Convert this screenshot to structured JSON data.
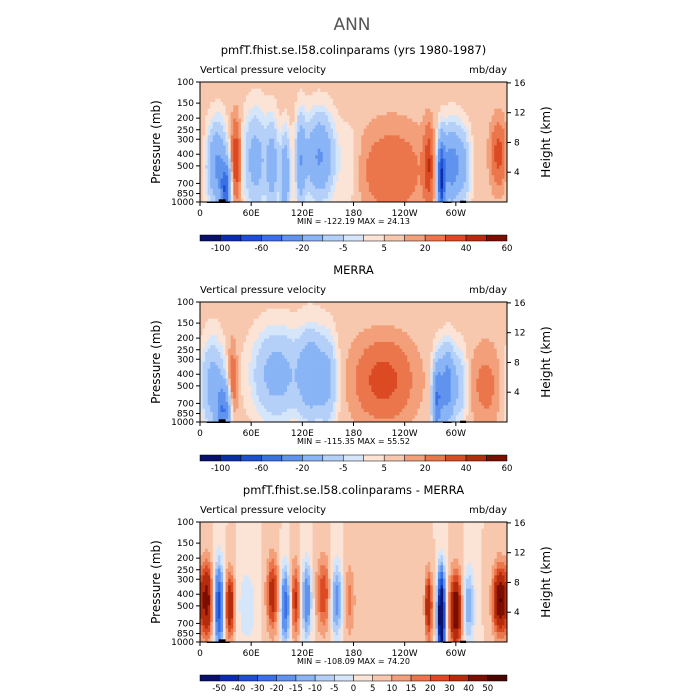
{
  "page": {
    "title": "ANN"
  },
  "colors": {
    "model_scale": [
      "#08106b",
      "#0a2dac",
      "#1c4fd4",
      "#3a70e6",
      "#5f93ee",
      "#89b4f5",
      "#b4d0f8",
      "#d6e6fa",
      "#fbe3d6",
      "#f8c8ae",
      "#f3a07a",
      "#ec764c",
      "#db4a22",
      "#b52c0c",
      "#7a0f00"
    ],
    "diff_scale": [
      "#08106b",
      "#0a2dac",
      "#1c4fd4",
      "#3a70e6",
      "#5f93ee",
      "#89b4f5",
      "#b4d0f8",
      "#d6e6fa",
      "#fbe3d6",
      "#f8c8ae",
      "#f3a07a",
      "#ec764c",
      "#db4a22",
      "#b52c0c",
      "#7a0f00",
      "#4a0500"
    ],
    "topography": "#000000"
  },
  "chart_data": [
    {
      "type": "heatmap",
      "title": "pmfT.fhist.se.l58.colinparams (yrs 1980-1987)",
      "left_label": "Vertical pressure velocity",
      "right_label": "mb/day",
      "ylabel": "Pressure (mb)",
      "ylabel_right": "Height (km)",
      "x_ticks": [
        "0",
        "60E",
        "120E",
        "180",
        "120W",
        "60W"
      ],
      "x_range": [
        0,
        360
      ],
      "y_ticks": [
        "100",
        "150",
        "200",
        "250",
        "300",
        "400",
        "500",
        "700",
        "850",
        "1000"
      ],
      "y_range": [
        100,
        1000
      ],
      "y_scale": "log",
      "y_right_ticks": [
        "16",
        "12",
        "8",
        "4"
      ],
      "stats_text": "MIN = -122.19   MAX =  24.13",
      "min": -122.19,
      "max": 24.13,
      "colorbar_labels": [
        "-100",
        "-60",
        "-20",
        "-5",
        "5",
        "20",
        "40",
        "60"
      ],
      "colorbar_levels": [
        -120,
        -100,
        -80,
        -60,
        -40,
        -20,
        -10,
        -5,
        0,
        5,
        10,
        20,
        30,
        40,
        60
      ],
      "features": [
        {
          "lon": 20,
          "amp": -45,
          "w": 8,
          "pc": 500,
          "pw": 0.55
        },
        {
          "lon": 30,
          "amp": -70,
          "w": 4,
          "pc": 800,
          "pw": 0.35
        },
        {
          "lon": 42,
          "amp": 30,
          "w": 4,
          "pc": 450,
          "pw": 0.5
        },
        {
          "lon": 65,
          "amp": -30,
          "w": 10,
          "pc": 450,
          "pw": 0.65
        },
        {
          "lon": 85,
          "amp": -30,
          "w": 5,
          "pc": 500,
          "pw": 0.6
        },
        {
          "lon": 100,
          "amp": -40,
          "w": 4,
          "pc": 600,
          "pw": 0.55
        },
        {
          "lon": 118,
          "amp": -35,
          "w": 4,
          "pc": 450,
          "pw": 0.6
        },
        {
          "lon": 140,
          "amp": -45,
          "w": 12,
          "pc": 420,
          "pw": 0.55
        },
        {
          "lon": 175,
          "amp": -8,
          "w": 8,
          "pc": 500,
          "pw": 0.6
        },
        {
          "lon": 225,
          "amp": 15,
          "w": 25,
          "pc": 550,
          "pw": 0.55
        },
        {
          "lon": 268,
          "amp": 25,
          "w": 4,
          "pc": 500,
          "pw": 0.5
        },
        {
          "lon": 283,
          "amp": -95,
          "w": 3,
          "pc": 650,
          "pw": 0.5
        },
        {
          "lon": 295,
          "amp": -55,
          "w": 8,
          "pc": 500,
          "pw": 0.5
        },
        {
          "lon": 310,
          "amp": -20,
          "w": 6,
          "pc": 500,
          "pw": 0.5
        },
        {
          "lon": 350,
          "amp": 22,
          "w": 6,
          "pc": 400,
          "pw": 0.4
        }
      ]
    },
    {
      "type": "heatmap",
      "title": "MERRA",
      "left_label": "Vertical pressure velocity",
      "right_label": "mb/day",
      "ylabel": "Pressure (mb)",
      "ylabel_right": "Height (km)",
      "x_ticks": [
        "0",
        "60E",
        "120E",
        "180",
        "120W",
        "60W"
      ],
      "x_range": [
        0,
        360
      ],
      "y_ticks": [
        "100",
        "150",
        "200",
        "250",
        "300",
        "400",
        "500",
        "700",
        "850",
        "1000"
      ],
      "y_range": [
        100,
        1000
      ],
      "y_scale": "log",
      "y_right_ticks": [
        "16",
        "12",
        "8",
        "4"
      ],
      "stats_text": "MIN = -115.35   MAX =  55.52",
      "min": -115.35,
      "max": 55.52,
      "colorbar_labels": [
        "-100",
        "-60",
        "-20",
        "-5",
        "5",
        "20",
        "40",
        "60"
      ],
      "colorbar_levels": [
        -120,
        -100,
        -80,
        -60,
        -40,
        -20,
        -10,
        -5,
        0,
        5,
        10,
        20,
        30,
        40,
        60
      ],
      "features": [
        {
          "lon": 15,
          "amp": -30,
          "w": 10,
          "pc": 500,
          "pw": 0.6
        },
        {
          "lon": 28,
          "amp": -55,
          "w": 6,
          "pc": 800,
          "pw": 0.35
        },
        {
          "lon": 38,
          "amp": 20,
          "w": 4,
          "pc": 500,
          "pw": 0.5
        },
        {
          "lon": 90,
          "amp": -30,
          "w": 20,
          "pc": 400,
          "pw": 0.6
        },
        {
          "lon": 130,
          "amp": -35,
          "w": 10,
          "pc": 400,
          "pw": 0.6
        },
        {
          "lon": 150,
          "amp": -25,
          "w": 8,
          "pc": 450,
          "pw": 0.6
        },
        {
          "lon": 215,
          "amp": 22,
          "w": 22,
          "pc": 450,
          "pw": 0.5
        },
        {
          "lon": 278,
          "amp": -60,
          "w": 4,
          "pc": 650,
          "pw": 0.5
        },
        {
          "lon": 290,
          "amp": -55,
          "w": 6,
          "pc": 500,
          "pw": 0.5
        },
        {
          "lon": 305,
          "amp": -20,
          "w": 6,
          "pc": 500,
          "pw": 0.5
        },
        {
          "lon": 335,
          "amp": 10,
          "w": 12,
          "pc": 500,
          "pw": 0.5
        }
      ]
    },
    {
      "type": "heatmap",
      "title": "pmfT.fhist.se.l58.colinparams - MERRA",
      "left_label": "Vertical pressure velocity",
      "right_label": "mb/day",
      "ylabel": "Pressure (mb)",
      "ylabel_right": "Height (km)",
      "x_ticks": [
        "0",
        "60E",
        "120E",
        "180",
        "120W",
        "60W"
      ],
      "x_range": [
        0,
        360
      ],
      "y_ticks": [
        "100",
        "150",
        "200",
        "250",
        "300",
        "400",
        "500",
        "700",
        "850",
        "1000"
      ],
      "y_range": [
        100,
        1000
      ],
      "y_scale": "log",
      "y_right_ticks": [
        "16",
        "12",
        "8",
        "4"
      ],
      "stats_text": "MIN = -108.09   MAX =  74.20",
      "min": -108.09,
      "max": 74.2,
      "colorbar_labels": [
        "-50",
        "-40",
        "-30",
        "-20",
        "-15",
        "-10",
        "-5",
        "0",
        "5",
        "10",
        "15",
        "20",
        "30",
        "40",
        "50"
      ],
      "colorbar_levels": [
        -60,
        -50,
        -40,
        -30,
        -20,
        -15,
        -10,
        -5,
        0,
        5,
        10,
        15,
        20,
        30,
        40,
        50
      ],
      "features": [
        {
          "lon": 8,
          "amp": 35,
          "w": 5,
          "pc": 450,
          "pw": 0.5
        },
        {
          "lon": 22,
          "amp": -45,
          "w": 4,
          "pc": 500,
          "pw": 0.55
        },
        {
          "lon": 35,
          "amp": 30,
          "w": 4,
          "pc": 500,
          "pw": 0.45
        },
        {
          "lon": 55,
          "amp": -10,
          "w": 8,
          "pc": 500,
          "pw": 0.5
        },
        {
          "lon": 85,
          "amp": 25,
          "w": 5,
          "pc": 400,
          "pw": 0.5
        },
        {
          "lon": 100,
          "amp": -35,
          "w": 4,
          "pc": 500,
          "pw": 0.5
        },
        {
          "lon": 112,
          "amp": 22,
          "w": 4,
          "pc": 450,
          "pw": 0.5
        },
        {
          "lon": 125,
          "amp": -30,
          "w": 4,
          "pc": 450,
          "pw": 0.5
        },
        {
          "lon": 145,
          "amp": 20,
          "w": 6,
          "pc": 400,
          "pw": 0.5
        },
        {
          "lon": 160,
          "amp": -25,
          "w": 5,
          "pc": 450,
          "pw": 0.5
        },
        {
          "lon": 175,
          "amp": 12,
          "w": 5,
          "pc": 450,
          "pw": 0.5
        },
        {
          "lon": 268,
          "amp": 30,
          "w": 3,
          "pc": 500,
          "pw": 0.45
        },
        {
          "lon": 283,
          "amp": -90,
          "w": 3,
          "pc": 600,
          "pw": 0.55
        },
        {
          "lon": 300,
          "amp": 40,
          "w": 5,
          "pc": 550,
          "pw": 0.5
        },
        {
          "lon": 315,
          "amp": -20,
          "w": 5,
          "pc": 500,
          "pw": 0.5
        },
        {
          "lon": 352,
          "amp": 40,
          "w": 6,
          "pc": 450,
          "pw": 0.45
        }
      ]
    }
  ]
}
